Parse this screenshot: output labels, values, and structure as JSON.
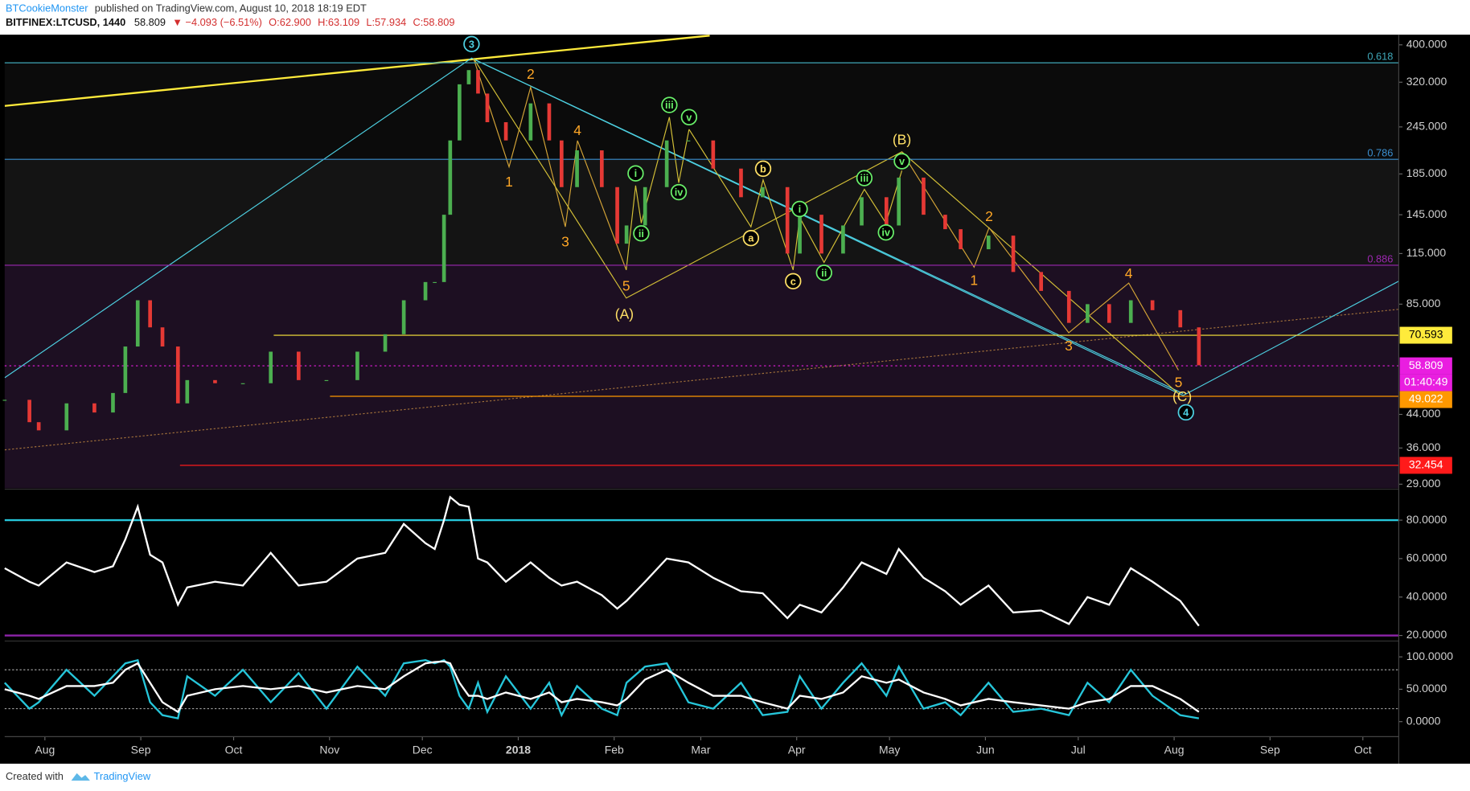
{
  "header": {
    "author": "BTCookieMonster",
    "published": "published on TradingView.com, August 10, 2018 18:19 EDT",
    "symbol": "BITFINEX:LTCUSD, 1440",
    "last": "58.809",
    "change": "▼ −4.093 (−6.51%)",
    "open": "O:62.900",
    "high": "H:63.109",
    "low": "L:57.934",
    "close": "C:58.809"
  },
  "footer": {
    "created": "Created with",
    "brand": "TradingView"
  },
  "chart_data": [
    {
      "type": "candle",
      "log_scale": true,
      "up_color": "#4caf50",
      "down_color": "#e53935",
      "x": [
        -13,
        -5,
        -2,
        7,
        16,
        22,
        26,
        30,
        34,
        38,
        43,
        46,
        55,
        64,
        73,
        82,
        91,
        101,
        110,
        116,
        123,
        126,
        129,
        131,
        134,
        137,
        140,
        143,
        149,
        157,
        163,
        167,
        172,
        180,
        185,
        188,
        194,
        201,
        208,
        216,
        225,
        232,
        240,
        244,
        251,
        258,
        264,
        272,
        276,
        284,
        291,
        296,
        305,
        313,
        322,
        331,
        337,
        344,
        351,
        358,
        367,
        373
      ],
      "values": [
        48,
        42,
        40,
        47,
        44.5,
        50,
        66,
        87,
        74,
        66,
        47,
        54,
        53,
        53,
        64,
        54,
        54,
        64,
        71,
        87,
        97,
        97,
        145,
        226,
        316,
        344,
        299,
        252,
        226,
        282,
        226,
        171,
        213,
        171,
        122,
        136,
        171,
        226,
        226,
        191,
        161,
        171,
        115,
        145,
        115,
        136,
        161,
        136,
        181,
        145,
        133,
        118,
        128,
        103,
        92,
        76,
        85,
        76,
        87,
        82,
        74,
        59
      ],
      "xlim": [
        -13,
        437.6
      ],
      "xticks": [
        {
          "value": 0,
          "label": "Aug"
        },
        {
          "value": 31,
          "label": "Sep"
        },
        {
          "value": 61,
          "label": "Oct"
        },
        {
          "value": 92,
          "label": "Nov"
        },
        {
          "value": 122,
          "label": "Dec"
        },
        {
          "value": 153,
          "label": "2018"
        },
        {
          "value": 184,
          "label": "Feb"
        },
        {
          "value": 212,
          "label": "Mar"
        },
        {
          "value": 243,
          "label": "Apr"
        },
        {
          "value": 273,
          "label": "May"
        },
        {
          "value": 304,
          "label": "Jun"
        },
        {
          "value": 334,
          "label": "Jul"
        },
        {
          "value": 365,
          "label": "Aug"
        },
        {
          "value": 396,
          "label": "Sep"
        },
        {
          "value": 426,
          "label": "Oct"
        }
      ],
      "ylim": [
        28.3,
        425
      ],
      "yticks": [
        {
          "value": 400,
          "label": "400.000"
        },
        {
          "value": 320,
          "label": "320.000"
        },
        {
          "value": 245,
          "label": "245.000"
        },
        {
          "value": 185,
          "label": "185.000"
        },
        {
          "value": 145,
          "label": "145.000"
        },
        {
          "value": 115,
          "label": "115.000"
        },
        {
          "value": 85,
          "label": "85.000"
        },
        {
          "value": 44,
          "label": "44.000"
        },
        {
          "value": 36,
          "label": "36.000"
        },
        {
          "value": 29,
          "label": "29.000"
        }
      ],
      "price_lines": [
        {
          "value": 70.593,
          "color": "#ffeb3b",
          "text_color": "#000"
        },
        {
          "value": 58.809,
          "color": "#e91ee0",
          "text_color": "#fff"
        },
        {
          "value": 49.022,
          "color": "#ff9800",
          "text_color": "#fff"
        },
        {
          "value": 32.454,
          "color": "#ff1a1a",
          "text_color": "#fff"
        }
      ],
      "countdown": "01:40:49",
      "fib_levels": [
        0.618,
        0.786,
        0.886
      ],
      "fib_colors": [
        "#3fa7b8",
        "#3b8fd0",
        "#9c27b0"
      ],
      "wave_labels": [
        {
          "text": "3",
          "color": "#4dd0e1",
          "circled": true
        },
        {
          "text": "2",
          "color": "#ffa726",
          "circled": false
        },
        {
          "text": "1",
          "color": "#ffa726",
          "circled": false
        },
        {
          "text": "4",
          "color": "#ffa726",
          "circled": false
        },
        {
          "text": "3",
          "color": "#ffa726",
          "circled": false
        },
        {
          "text": "5",
          "color": "#ffa726",
          "circled": false
        },
        {
          "text": "(A)",
          "color": "#ffe066",
          "circled": false
        },
        {
          "text": "i",
          "color": "#69f06a",
          "circled": true
        },
        {
          "text": "ii",
          "color": "#69f06a",
          "circled": true
        },
        {
          "text": "iii",
          "color": "#69f06a",
          "circled": true
        },
        {
          "text": "iv",
          "color": "#69f06a",
          "circled": true
        },
        {
          "text": "v",
          "color": "#69f06a",
          "circled": true
        },
        {
          "text": "a",
          "color": "#ffe066",
          "circled": true
        },
        {
          "text": "b",
          "color": "#ffe066",
          "circled": true
        },
        {
          "text": "c",
          "color": "#ffe066",
          "circled": true
        },
        {
          "text": "i",
          "color": "#69f06a",
          "circled": true
        },
        {
          "text": "ii",
          "color": "#69f06a",
          "circled": true
        },
        {
          "text": "iii",
          "color": "#69f06a",
          "circled": true
        },
        {
          "text": "iv",
          "color": "#69f06a",
          "circled": true
        },
        {
          "text": "v",
          "color": "#69f06a",
          "circled": true
        },
        {
          "text": "(B)",
          "color": "#ffe066",
          "circled": false
        },
        {
          "text": "2",
          "color": "#ffa726",
          "circled": false
        },
        {
          "text": "1",
          "color": "#ffa726",
          "circled": false
        },
        {
          "text": "3",
          "color": "#ffa726",
          "circled": false
        },
        {
          "text": "4",
          "color": "#ffa726",
          "circled": false
        },
        {
          "text": "5",
          "color": "#ffa726",
          "circled": false
        },
        {
          "text": "(C)",
          "color": "#ffe066",
          "circled": false
        },
        {
          "text": "4",
          "color": "#4dd0e1",
          "circled": true
        }
      ]
    },
    {
      "type": "line",
      "color": "#ffffff",
      "values": [
        55,
        48,
        46,
        58,
        53,
        56,
        70,
        87,
        62,
        58,
        36,
        45,
        48,
        46,
        63,
        46,
        48,
        60,
        63,
        78,
        68,
        65,
        80,
        92,
        88,
        87,
        60,
        58,
        48,
        58,
        50,
        46,
        48,
        41,
        34,
        38,
        48,
        60,
        58,
        50,
        43,
        42,
        29,
        36,
        32,
        45,
        58,
        52,
        65,
        50,
        43,
        36,
        46,
        32,
        33,
        26,
        40,
        36,
        55,
        48,
        38,
        25
      ],
      "ylim": [
        17.6,
        96.1
      ],
      "yticks": [
        {
          "value": 80,
          "label": "80.0000"
        },
        {
          "value": 60,
          "label": "60.0000"
        },
        {
          "value": 40,
          "label": "40.0000"
        },
        {
          "value": 20,
          "label": "20.0000"
        }
      ],
      "levels": [
        {
          "value": 80,
          "color": "#26c6da"
        },
        {
          "value": 20,
          "color": "#8e24aa"
        }
      ]
    },
    {
      "type": "line",
      "series": [
        {
          "color": "#26c6da",
          "values": [
            60,
            20,
            30,
            80,
            40,
            70,
            90,
            95,
            30,
            10,
            5,
            70,
            40,
            80,
            30,
            75,
            20,
            85,
            40,
            90,
            95,
            90,
            95,
            85,
            40,
            20,
            60,
            15,
            70,
            20,
            60,
            10,
            55,
            20,
            10,
            60,
            85,
            90,
            30,
            20,
            60,
            10,
            15,
            70,
            20,
            60,
            90,
            40,
            85,
            20,
            30,
            10,
            60,
            15,
            20,
            10,
            60,
            30,
            80,
            40,
            10,
            5
          ]
        },
        {
          "color": "#ffffff",
          "values": [
            50,
            40,
            35,
            55,
            55,
            60,
            80,
            90,
            60,
            30,
            15,
            40,
            50,
            55,
            50,
            55,
            45,
            55,
            50,
            70,
            90,
            92,
            93,
            90,
            60,
            40,
            40,
            35,
            45,
            35,
            45,
            30,
            35,
            30,
            25,
            35,
            65,
            80,
            60,
            40,
            40,
            30,
            20,
            40,
            35,
            45,
            70,
            60,
            65,
            45,
            35,
            25,
            35,
            30,
            25,
            20,
            30,
            35,
            55,
            55,
            35,
            15
          ]
        }
      ],
      "ylim": [
        -21.7,
        123
      ],
      "yticks": [
        {
          "value": 100,
          "label": "100.0000"
        },
        {
          "value": 50,
          "label": "50.0000"
        },
        {
          "value": 0,
          "label": "0.0000"
        }
      ],
      "levels": [
        {
          "value": 80,
          "color": "#9e9e9e"
        },
        {
          "value": 20,
          "color": "#9e9e9e"
        }
      ]
    }
  ]
}
